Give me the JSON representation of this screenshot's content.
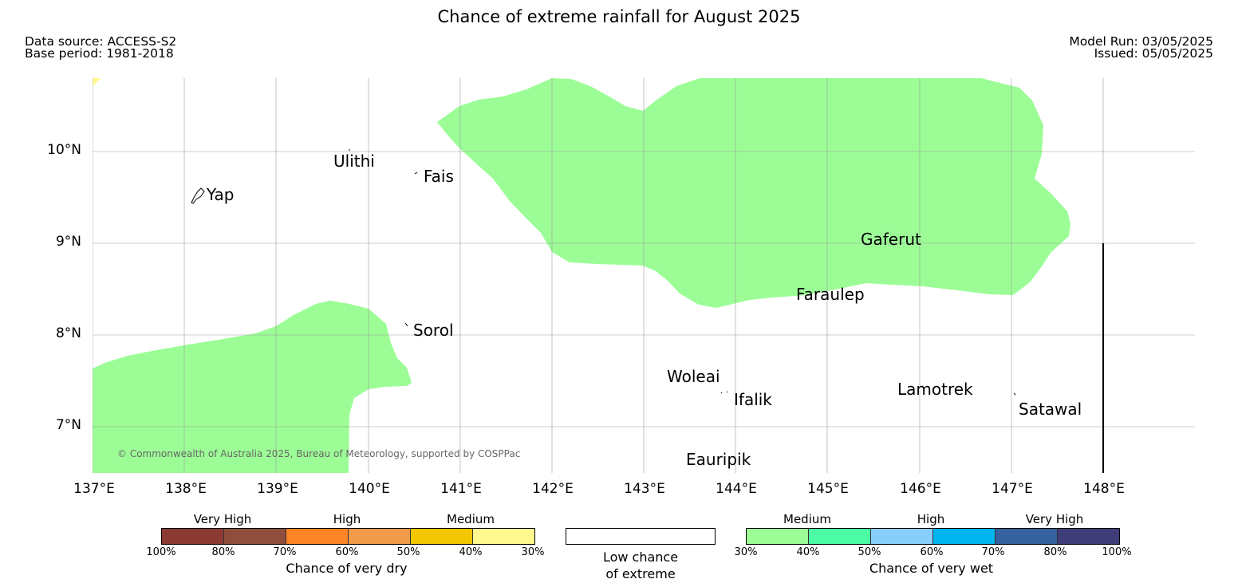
{
  "header": {
    "title": "Chance of extreme rainfall for August 2025",
    "data_source": "Data source: ACCESS-S2",
    "base_period": "Base period: 1981-2018",
    "model_run": "Model Run: 03/05/2025",
    "issued": "Issued: 05/05/2025"
  },
  "axes": {
    "lat_labels": [
      "10°N",
      "9°N",
      "8°N",
      "7°N"
    ],
    "lon_labels": [
      "137°E",
      "138°E",
      "139°E",
      "140°E",
      "141°E",
      "142°E",
      "143°E",
      "144°E",
      "145°E",
      "146°E",
      "147°E",
      "148°E"
    ]
  },
  "places": {
    "yap": "Yap",
    "ulithi": "Ulithi",
    "fais": "Fais",
    "sorol": "Sorol",
    "gaferut": "Gaferut",
    "faraulep": "Faraulep",
    "woleai": "Woleai",
    "ifalik": "Ifalik",
    "lamotrek": "Lamotrek",
    "satawal": "Satawal",
    "eauripik": "Eauripik"
  },
  "copyright": "© Commonwealth of Australia 2025, Bureau of Meteorology, supported by COSPPac",
  "legend": {
    "dry": {
      "title": "Chance of very dry",
      "categories": [
        "Very High",
        "High",
        "Medium"
      ],
      "ticks": [
        "100%",
        "80%",
        "70%",
        "60%",
        "50%",
        "40%",
        "30%"
      ],
      "colors": [
        "#8b3a33",
        "#8f4e3c",
        "#ff8427",
        "#f09a4a",
        "#f2c600",
        "#fff88f"
      ]
    },
    "neutral": {
      "line1": "Low chance",
      "line2": "of extreme",
      "color": "#ffffff"
    },
    "wet": {
      "title": "Chance of very wet",
      "categories": [
        "Medium",
        "High",
        "Very High"
      ],
      "ticks": [
        "30%",
        "40%",
        "50%",
        "60%",
        "70%",
        "80%",
        "100%"
      ],
      "colors": [
        "#9cfd96",
        "#4dfda6",
        "#87cefa",
        "#00b4f0",
        "#35619f",
        "#3f3c7a"
      ]
    }
  },
  "map_colors": {
    "wet_medium": "#9cfd96",
    "dry_medium_light": "#fff88f"
  }
}
